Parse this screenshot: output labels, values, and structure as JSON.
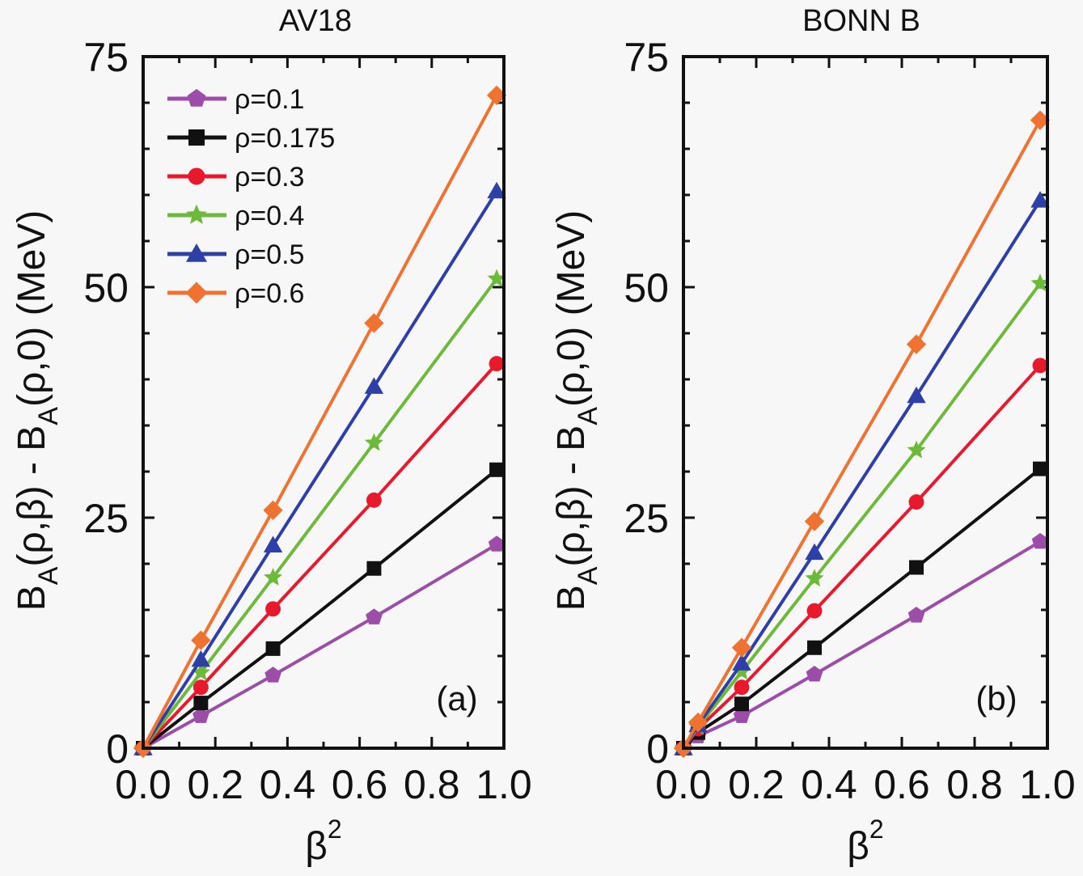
{
  "chart_data": [
    {
      "type": "line",
      "panel": "(a)",
      "title": "AV18",
      "xlabel": "β²",
      "ylabel": "B_A(ρ,β) - B_A(ρ,0) (MeV)",
      "xlim": [
        0.0,
        1.0
      ],
      "ylim": [
        0,
        75
      ],
      "xticks": [
        "0.0",
        "0.2",
        "0.4",
        "0.6",
        "0.8",
        "1.0"
      ],
      "yticks": [
        "0",
        "25",
        "50",
        "75"
      ],
      "legend_position": "top-left",
      "x": [
        0.0,
        0.16,
        0.36,
        0.64,
        0.98
      ],
      "series": [
        {
          "name": "ρ=0.1",
          "marker": "pentagon",
          "color": "#9B4DA8",
          "values": [
            0,
            3.5,
            7.9,
            14.2,
            22.1
          ]
        },
        {
          "name": "ρ=0.175",
          "marker": "square",
          "color": "#111111",
          "values": [
            0,
            4.9,
            10.8,
            19.5,
            30.2
          ]
        },
        {
          "name": "ρ=0.3",
          "marker": "circle",
          "color": "#E8192C",
          "values": [
            0,
            6.6,
            15.1,
            26.9,
            41.7
          ]
        },
        {
          "name": "ρ=0.4",
          "marker": "star",
          "color": "#6DBA3A",
          "values": [
            0,
            8.2,
            18.5,
            33.1,
            50.9
          ]
        },
        {
          "name": "ρ=0.5",
          "marker": "triangle",
          "color": "#2E3FA8",
          "values": [
            0,
            9.6,
            22.0,
            39.2,
            60.4
          ]
        },
        {
          "name": "ρ=0.6",
          "marker": "diamond",
          "color": "#F07230",
          "values": [
            0,
            11.7,
            25.8,
            46.1,
            70.8
          ]
        }
      ]
    },
    {
      "type": "line",
      "panel": "(b)",
      "title": "BONN B",
      "xlabel": "β²",
      "ylabel": "B_A(ρ,β) - B_A(ρ,0) (MeV)",
      "xlim": [
        0.0,
        1.0
      ],
      "ylim": [
        0,
        75
      ],
      "xticks": [
        "0.0",
        "0.2",
        "0.4",
        "0.6",
        "0.8",
        "1.0"
      ],
      "yticks": [
        "0",
        "25",
        "50",
        "75"
      ],
      "x": [
        0.0,
        0.04,
        0.16,
        0.36,
        0.64,
        0.98
      ],
      "series": [
        {
          "name": "ρ=0.1",
          "marker": "pentagon",
          "color": "#9B4DA8",
          "values": [
            0,
            1.3,
            3.5,
            8.0,
            14.4,
            22.4
          ]
        },
        {
          "name": "ρ=0.175",
          "marker": "square",
          "color": "#111111",
          "values": [
            0,
            1.7,
            4.8,
            10.9,
            19.6,
            30.3
          ]
        },
        {
          "name": "ρ=0.3",
          "marker": "circle",
          "color": "#E8192C",
          "values": [
            0,
            2.1,
            6.6,
            14.9,
            26.7,
            41.5
          ]
        },
        {
          "name": "ρ=0.4",
          "marker": "star",
          "color": "#6DBA3A",
          "values": [
            0,
            2.3,
            8.3,
            18.4,
            32.3,
            50.4
          ]
        },
        {
          "name": "ρ=0.5",
          "marker": "triangle",
          "color": "#2E3FA8",
          "values": [
            0,
            2.5,
            9.2,
            21.2,
            38.2,
            59.4
          ]
        },
        {
          "name": "ρ=0.6",
          "marker": "diamond",
          "color": "#F07230",
          "values": [
            0,
            2.8,
            10.9,
            24.6,
            43.8,
            68.1
          ]
        }
      ]
    }
  ]
}
